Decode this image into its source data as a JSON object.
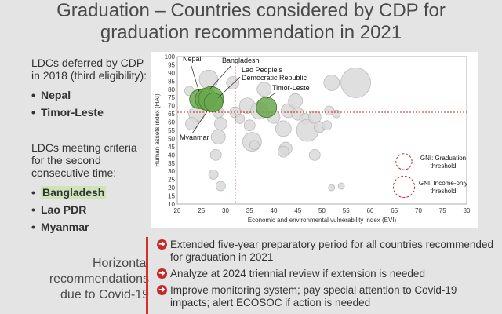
{
  "title_line1": "Graduation – Countries considered by CDP for",
  "title_line2": "graduation recommendation in 2021",
  "left": {
    "deferred_heading": "LDCs deferred by CDP in 2018 (third eligibility):",
    "deferred": [
      "Nepal",
      "Timor-Leste"
    ],
    "meeting_heading": "LDCs meeting criteria for the second consecutive time:",
    "meeting": [
      "Bangladesh",
      "Lao PDR",
      "Myanmar"
    ],
    "bullet": "•"
  },
  "horizontal_label": "Horizontal recommendations due to Covid-19",
  "recommendations": [
    "Extended five-year preparatory period for all countries recommended for graduation in 2021",
    "Analyze at 2024 triennial review if extension is needed",
    "Improve monitoring system; pay special attention to Covid-19 impacts; alert ECOSOC if action is needed"
  ],
  "arrow_glyph": "➜",
  "colors": {
    "highlight": "#b9d59a",
    "threshold": "#c62828",
    "green_bubble": "#6aa84f",
    "grey_bubble": "#d9d9d9"
  },
  "chart_data": {
    "type": "scatter",
    "xlabel": "Economic and environmental vulnerability index (EVI)",
    "ylabel": "Human assets index (HAI)",
    "xlim": [
      20,
      80
    ],
    "ylim": [
      10,
      100
    ],
    "xticks": [
      20,
      25,
      30,
      35,
      40,
      45,
      50,
      55,
      60,
      65,
      70,
      75,
      80
    ],
    "yticks": [
      10,
      15,
      20,
      25,
      30,
      35,
      40,
      45,
      50,
      55,
      60,
      65,
      70,
      75,
      80,
      85,
      90,
      95,
      100
    ],
    "thresholds": {
      "evi": 32,
      "hai": 66
    },
    "legend": [
      {
        "label_line1": "GNI: Graduation",
        "label_line2": "threshold",
        "size": 12
      },
      {
        "label_line1": "GNI: Income-only",
        "label_line2": "threshold",
        "size": 16
      }
    ],
    "highlighted": [
      {
        "name": "Nepal",
        "evi": 24.5,
        "hai": 74,
        "size": 12
      },
      {
        "name": "Bangladesh",
        "evi": 26,
        "hai": 74,
        "size": 14
      },
      {
        "name": "Myanmar",
        "evi": 27,
        "hai": 74,
        "size": 16
      },
      {
        "name": "Lao People's Democratic Republic",
        "label_line1": "Lao People’s",
        "label_line2": "Democratic Republic",
        "evi": 27.5,
        "hai": 72,
        "size": 12
      },
      {
        "name": "Timor-Leste",
        "evi": 38.5,
        "hai": 69,
        "size": 13
      }
    ],
    "others": [
      {
        "evi": 26.5,
        "hai": 86,
        "size": 12
      },
      {
        "evi": 24,
        "hai": 65,
        "size": 10
      },
      {
        "evi": 23,
        "hai": 59,
        "size": 8
      },
      {
        "evi": 22.5,
        "hai": 79,
        "size": 6
      },
      {
        "evi": 28.5,
        "hai": 66,
        "size": 7
      },
      {
        "evi": 29,
        "hai": 59,
        "size": 8
      },
      {
        "evi": 28.5,
        "hai": 51,
        "size": 9
      },
      {
        "evi": 28,
        "hai": 40,
        "size": 7
      },
      {
        "evi": 27.5,
        "hai": 28,
        "size": 6
      },
      {
        "evi": 29,
        "hai": 21,
        "size": 6
      },
      {
        "evi": 31.5,
        "hai": 84,
        "size": 8
      },
      {
        "evi": 32,
        "hai": 66,
        "size": 7
      },
      {
        "evi": 33,
        "hai": 62,
        "size": 6
      },
      {
        "evi": 34.5,
        "hai": 70,
        "size": 10
      },
      {
        "evi": 37,
        "hai": 67,
        "size": 11
      },
      {
        "evi": 38,
        "hai": 80,
        "size": 9
      },
      {
        "evi": 35,
        "hai": 58,
        "size": 7
      },
      {
        "evi": 35.5,
        "hai": 48,
        "size": 12
      },
      {
        "evi": 36,
        "hai": 46,
        "size": 6
      },
      {
        "evi": 40,
        "hai": 63,
        "size": 8
      },
      {
        "evi": 42,
        "hai": 56,
        "size": 10
      },
      {
        "evi": 42.5,
        "hai": 44,
        "size": 8
      },
      {
        "evi": 42,
        "hai": 42,
        "size": 7
      },
      {
        "evi": 43,
        "hai": 67,
        "size": 9
      },
      {
        "evi": 44.5,
        "hai": 73,
        "size": 9
      },
      {
        "evi": 45,
        "hai": 65,
        "size": 8
      },
      {
        "evi": 46.5,
        "hai": 62,
        "size": 7
      },
      {
        "evi": 47,
        "hai": 55,
        "size": 14
      },
      {
        "evi": 48.5,
        "hai": 63,
        "size": 8
      },
      {
        "evi": 48.5,
        "hai": 40,
        "size": 7
      },
      {
        "evi": 49.5,
        "hai": 57,
        "size": 7
      },
      {
        "evi": 51,
        "hai": 58,
        "size": 6
      },
      {
        "evi": 51.5,
        "hai": 67,
        "size": 6
      },
      {
        "evi": 52,
        "hai": 84,
        "size": 10
      },
      {
        "evi": 53,
        "hai": 65,
        "size": 5
      },
      {
        "evi": 54,
        "hai": 21,
        "size": 4
      },
      {
        "evi": 52,
        "hai": 20,
        "size": 4
      },
      {
        "evi": 57,
        "hai": 84,
        "size": 19
      }
    ]
  }
}
